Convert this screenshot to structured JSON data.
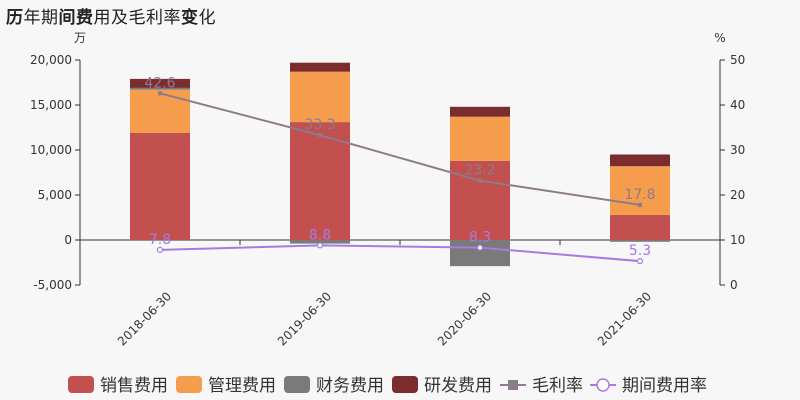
{
  "title": {
    "parts": [
      {
        "text": "历",
        "bold": true
      },
      {
        "text": "年期",
        "bold": false
      },
      {
        "text": "间费",
        "bold": true
      },
      {
        "text": "用及毛利率",
        "bold": false
      },
      {
        "text": "变",
        "bold": true
      },
      {
        "text": "化",
        "bold": false
      }
    ]
  },
  "chart_data": {
    "type": "bar",
    "stacked": true,
    "categories": [
      "2018-06-30",
      "2019-06-30",
      "2020-06-30",
      "2021-06-30"
    ],
    "left_axis": {
      "unit": "万",
      "min": -5000,
      "max": 20000,
      "ticks": [
        -5000,
        0,
        5000,
        10000,
        15000,
        20000
      ],
      "tick_labels": [
        "-5,000",
        "0",
        "5,000",
        "10,000",
        "15,000",
        "20,000"
      ]
    },
    "right_axis": {
      "unit": "%",
      "min": 0,
      "max": 50,
      "ticks": [
        0,
        10,
        20,
        30,
        40,
        50
      ],
      "tick_labels": [
        "0",
        "10",
        "20",
        "30",
        "40",
        "50"
      ]
    },
    "series": [
      {
        "name": "销售费用",
        "kind": "bar",
        "color": "#c1504e",
        "values": [
          11900,
          13100,
          8800,
          2800
        ]
      },
      {
        "name": "管理费用",
        "kind": "bar",
        "color": "#f59d4c",
        "values": [
          4800,
          5600,
          4900,
          5400
        ]
      },
      {
        "name": "财务费用",
        "kind": "bar",
        "color": "#7a7a7a",
        "values": [
          200,
          -400,
          -2900,
          -200
        ]
      },
      {
        "name": "研发费用",
        "kind": "bar",
        "color": "#7b2d2d",
        "values": [
          1000,
          1000,
          1100,
          1300
        ]
      },
      {
        "name": "毛利率",
        "kind": "line",
        "axis": "right",
        "color": "#8d7b8d",
        "marker": "square",
        "values": [
          42.6,
          33.3,
          23.2,
          17.8
        ],
        "labels": [
          "42.6",
          "33.3",
          "23.2",
          "17.8"
        ]
      },
      {
        "name": "期间费用率",
        "kind": "line",
        "axis": "right",
        "color": "#a77be0",
        "marker": "circle",
        "values": [
          7.8,
          8.8,
          8.3,
          5.3
        ],
        "labels": [
          "7.8",
          "8.8",
          "8.3",
          "5.3"
        ]
      }
    ],
    "legend_position": "bottom",
    "grid": false
  }
}
